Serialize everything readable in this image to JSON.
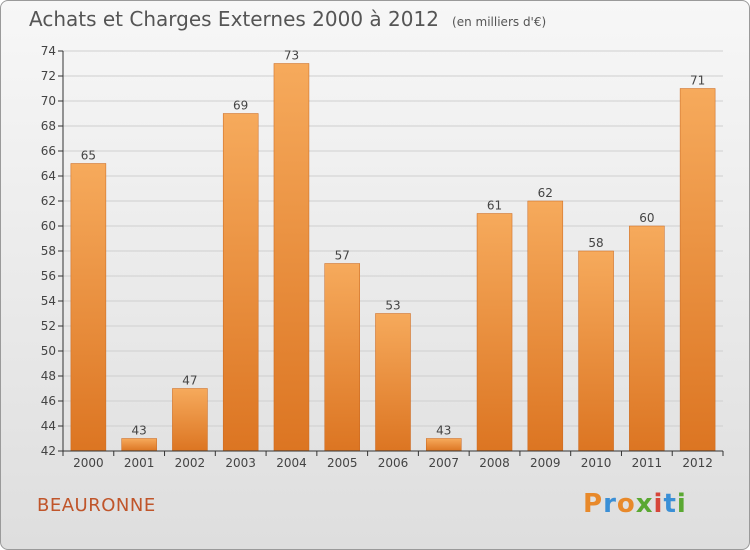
{
  "header": {
    "title": "Achats et Charges Externes 2000 à 2012",
    "unit": "(en milliers d'€)"
  },
  "footer": {
    "commune": "BEAURONNE",
    "brand": "Proxiti",
    "brand_colors": [
      "#e8892a",
      "#3a8fd6",
      "#e8892a",
      "#5aa832",
      "#d6463a",
      "#3a8fd6",
      "#5aa832"
    ]
  },
  "colors": {
    "bar_top": "#f6aa5c",
    "bar_bottom": "#dc7522",
    "bar_edge": "#c8651c",
    "axis": "#333333",
    "grid": "#cfcfcf",
    "text": "#444444",
    "commune": "#c0552a"
  },
  "chart_data": {
    "type": "bar",
    "title": "Achats et Charges Externes 2000 à 2012",
    "subtitle": "(en milliers d'€)",
    "xlabel": "",
    "ylabel": "",
    "categories": [
      "2000",
      "2001",
      "2002",
      "2003",
      "2004",
      "2005",
      "2006",
      "2007",
      "2008",
      "2009",
      "2010",
      "2011",
      "2012"
    ],
    "values": [
      65,
      43,
      47,
      69,
      73,
      57,
      53,
      43,
      61,
      62,
      58,
      60,
      71
    ],
    "ylim": [
      42,
      74
    ],
    "yticks": [
      42,
      44,
      46,
      48,
      50,
      52,
      54,
      56,
      58,
      60,
      62,
      64,
      66,
      68,
      70,
      72,
      74
    ],
    "grid": true,
    "data_labels": true
  }
}
